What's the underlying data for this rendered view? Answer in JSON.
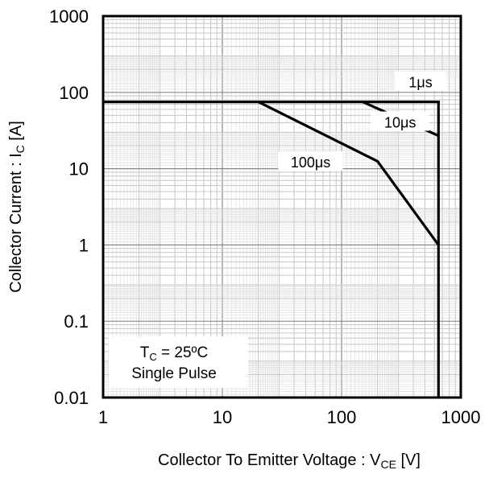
{
  "chart_data": {
    "type": "line",
    "title": "",
    "xlabel": {
      "main": "Collector To Emitter Voltage : V",
      "sub": "CE",
      "unit": " [V]"
    },
    "ylabel": {
      "main": "Collector Current : I",
      "sub": "C",
      "unit": " [A]"
    },
    "x_scale": "log",
    "y_scale": "log",
    "xlim": [
      1,
      1000
    ],
    "ylim": [
      0.01,
      1000
    ],
    "grid": true,
    "x_ticks": [
      {
        "value": 1,
        "label": "1"
      },
      {
        "value": 10,
        "label": "10"
      },
      {
        "value": 100,
        "label": "100"
      },
      {
        "value": 1000,
        "label": "1000"
      }
    ],
    "y_ticks": [
      {
        "value": 0.01,
        "label": "0.01"
      },
      {
        "value": 0.1,
        "label": "0.1"
      },
      {
        "value": 1,
        "label": "1"
      },
      {
        "value": 10,
        "label": "10"
      },
      {
        "value": 100,
        "label": "100"
      },
      {
        "value": 1000,
        "label": "1000"
      }
    ],
    "series": [
      {
        "label": "1μs",
        "points": [
          [
            1,
            75
          ],
          [
            650,
            75
          ],
          [
            650,
            0.01
          ]
        ]
      },
      {
        "label": "10μs",
        "points": [
          [
            150,
            75
          ],
          [
            650,
            27
          ]
        ]
      },
      {
        "label": "100μs",
        "points": [
          [
            20,
            75
          ],
          [
            200,
            12.5
          ],
          [
            650,
            1
          ]
        ]
      }
    ],
    "annotation": {
      "line1_main": "T",
      "line1_sub": "C",
      "line1_rest": " = 25ºC",
      "line2": "Single Pulse"
    }
  }
}
